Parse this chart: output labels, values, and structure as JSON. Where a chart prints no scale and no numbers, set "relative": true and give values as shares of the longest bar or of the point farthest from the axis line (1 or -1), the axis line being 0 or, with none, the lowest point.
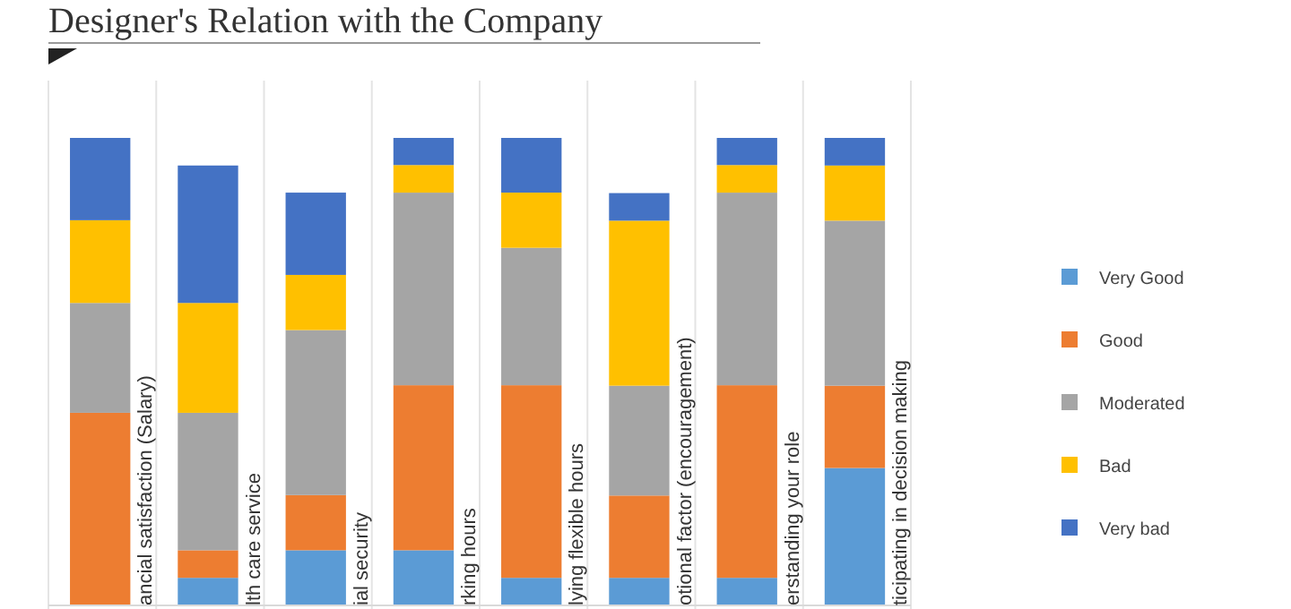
{
  "chart_data": {
    "type": "bar",
    "title": "Designer's Relation with the Company",
    "stacked": true,
    "relative": true,
    "grid": "x",
    "legend": "right",
    "categories": [
      "ancial satisfaction (Salary)",
      "lth care service",
      "ial security",
      "rking hours",
      "lying flexible hours",
      "otional factor (encouragement)",
      "erstanding your role",
      "ticipating in decision making"
    ],
    "series": [
      {
        "name": "Very Good",
        "color": "#5b9bd5",
        "values": [
          0,
          0.059,
          0.118,
          0.118,
          0.059,
          0.059,
          0.059,
          0.294
        ]
      },
      {
        "name": "Good",
        "color": "#ed7d31",
        "values": [
          0.412,
          0.059,
          0.118,
          0.353,
          0.412,
          0.176,
          0.412,
          0.176
        ]
      },
      {
        "name": "Moderated",
        "color": "#a5a5a5",
        "values": [
          0.235,
          0.294,
          0.353,
          0.412,
          0.294,
          0.235,
          0.412,
          0.353
        ]
      },
      {
        "name": "Bad",
        "color": "#ffc000",
        "values": [
          0.177,
          0.235,
          0.118,
          0.059,
          0.118,
          0.353,
          0.059,
          0.118
        ]
      },
      {
        "name": "Very bad",
        "color": "#4472c4",
        "values": [
          0.176,
          0.294,
          0.176,
          0.058,
          0.117,
          0.059,
          0.058,
          0.059
        ]
      }
    ]
  }
}
